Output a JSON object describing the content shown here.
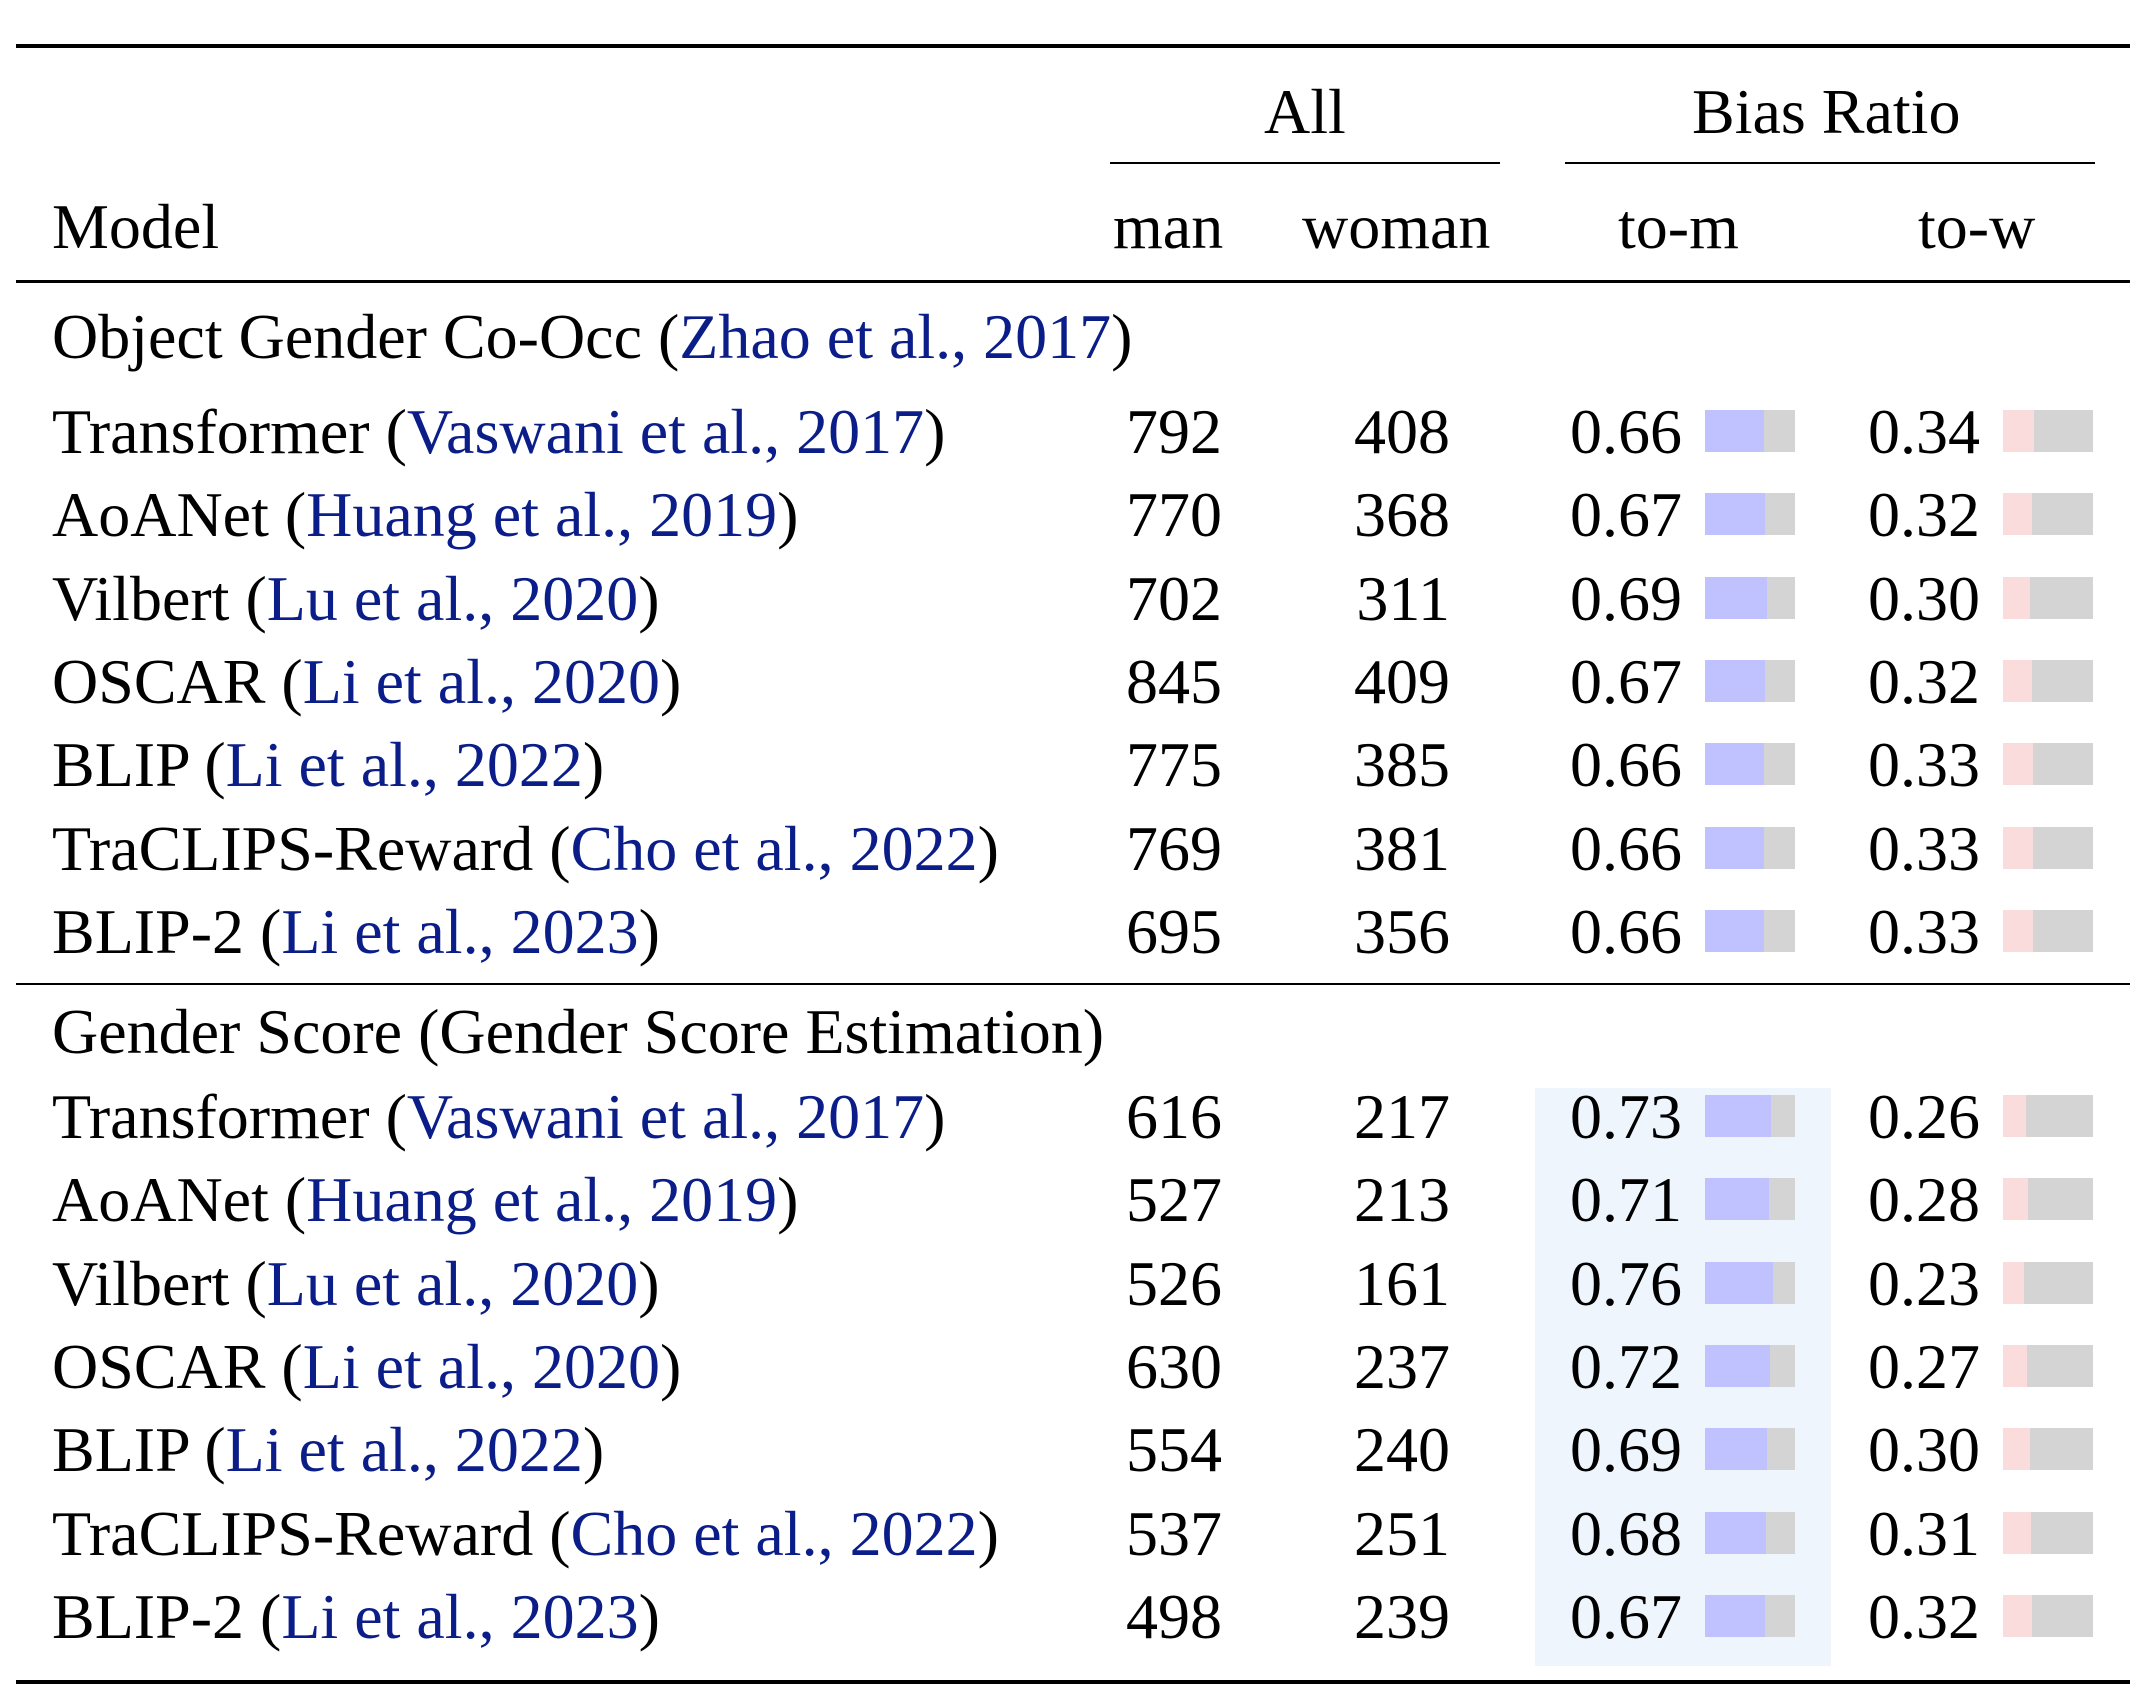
{
  "header": {
    "model": "Model",
    "group_all": "All",
    "group_bias": "Bias Ratio",
    "man": "man",
    "woman": "woman",
    "to_m": "to-m",
    "to_w": "to-w"
  },
  "colors": {
    "to_m_bar": "#c0c2ff",
    "to_w_bar": "#fbdcdc",
    "bar_track": "#d4d4d4",
    "citation": "#0b1d88",
    "highlight": "#eef5fd"
  },
  "sections": [
    {
      "title": "Object Gender Co-Occ (",
      "title_cite": "Zhao et al., 2017",
      "title_end": ")",
      "rows": [
        {
          "name": "Transformer (",
          "cite": "Vaswani et al., 2017",
          "close": ")",
          "man": "792",
          "woman": "408",
          "to_m": "0.66",
          "to_w": "0.34"
        },
        {
          "name": "AoANet (",
          "cite": "Huang et al., 2019",
          "close": ")",
          "man": "770",
          "woman": "368",
          "to_m": "0.67",
          "to_w": "0.32"
        },
        {
          "name": "Vilbert (",
          "cite": "Lu et al., 2020",
          "close": ")",
          "man": "702",
          "woman": "311",
          "to_m": "0.69",
          "to_w": "0.30"
        },
        {
          "name": "OSCAR (",
          "cite": "Li et al., 2020",
          "close": ")",
          "man": "845",
          "woman": "409",
          "to_m": "0.67",
          "to_w": "0.32"
        },
        {
          "name": "BLIP (",
          "cite": "Li et al., 2022",
          "close": ")",
          "man": "775",
          "woman": "385",
          "to_m": "0.66",
          "to_w": "0.33"
        },
        {
          "name": "TraCLIPS-Reward (",
          "cite": "Cho et al., 2022",
          "close": ")",
          "man": "769",
          "woman": "381",
          "to_m": "0.66",
          "to_w": "0.33"
        },
        {
          "name": "BLIP-2 (",
          "cite": "Li et al., 2023",
          "close": ")",
          "man": "695",
          "woman": "356",
          "to_m": "0.66",
          "to_w": "0.33"
        }
      ]
    },
    {
      "title": "Gender Score (Gender Score Estimation)",
      "title_cite": "",
      "title_end": "",
      "rows": [
        {
          "name": "Transformer (",
          "cite": "Vaswani et al., 2017",
          "close": ")",
          "man": "616",
          "woman": "217",
          "to_m": "0.73",
          "to_w": "0.26"
        },
        {
          "name": "AoANet (",
          "cite": "Huang et al., 2019",
          "close": ")",
          "man": "527",
          "woman": "213",
          "to_m": "0.71",
          "to_w": "0.28"
        },
        {
          "name": "Vilbert (",
          "cite": "Lu et al., 2020",
          "close": ")",
          "man": "526",
          "woman": "161",
          "to_m": "0.76",
          "to_w": "0.23"
        },
        {
          "name": "OSCAR (",
          "cite": "Li et al., 2020",
          "close": ")",
          "man": "630",
          "woman": "237",
          "to_m": "0.72",
          "to_w": "0.27"
        },
        {
          "name": "BLIP (",
          "cite": "Li et al., 2022",
          "close": ")",
          "man": "554",
          "woman": "240",
          "to_m": "0.69",
          "to_w": "0.30"
        },
        {
          "name": "TraCLIPS-Reward (",
          "cite": "Cho et al., 2022",
          "close": ")",
          "man": "537",
          "woman": "251",
          "to_m": "0.68",
          "to_w": "0.31"
        },
        {
          "name": "BLIP-2 (",
          "cite": "Li et al., 2023",
          "close": ")",
          "man": "498",
          "woman": "239",
          "to_m": "0.67",
          "to_w": "0.32"
        }
      ]
    }
  ]
}
